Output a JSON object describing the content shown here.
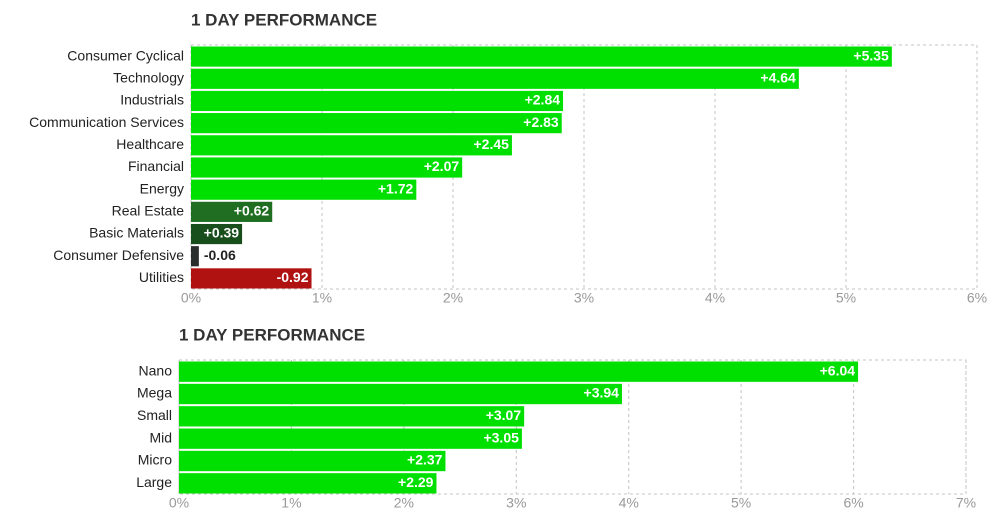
{
  "chart_data": [
    {
      "type": "barh",
      "title": "1 DAY PERFORMANCE",
      "categories": [
        "Consumer Cyclical",
        "Technology",
        "Industrials",
        "Communication Services",
        "Healthcare",
        "Financial",
        "Energy",
        "Real Estate",
        "Basic Materials",
        "Consumer Defensive",
        "Utilities"
      ],
      "values": [
        5.35,
        4.64,
        2.84,
        2.83,
        2.45,
        2.07,
        1.72,
        0.62,
        0.39,
        -0.06,
        -0.92
      ],
      "value_labels": [
        "+5.35",
        "+4.64",
        "+2.84",
        "+2.83",
        "+2.45",
        "+2.07",
        "+1.72",
        "+0.62",
        "+0.39",
        "-0.06",
        "-0.92"
      ],
      "colors": [
        "#00e000",
        "#00e000",
        "#00e000",
        "#00e000",
        "#00e000",
        "#00e000",
        "#00e000",
        "#1f6e22",
        "#184d1c",
        "#2a2e2c",
        "#b01212"
      ],
      "xlim": [
        0,
        6
      ],
      "xticks": [
        {
          "value": 0,
          "label": "0%"
        },
        {
          "value": 1,
          "label": "1%"
        },
        {
          "value": 2,
          "label": "2%"
        },
        {
          "value": 3,
          "label": "3%"
        },
        {
          "value": 4,
          "label": "4%"
        },
        {
          "value": 5,
          "label": "5%"
        },
        {
          "value": 6,
          "label": "6%"
        }
      ],
      "grid": true
    },
    {
      "type": "barh",
      "title": "1 DAY PERFORMANCE",
      "categories": [
        "Nano",
        "Mega",
        "Small",
        "Mid",
        "Micro",
        "Large"
      ],
      "values": [
        6.04,
        3.94,
        3.07,
        3.05,
        2.37,
        2.29
      ],
      "value_labels": [
        "+6.04",
        "+3.94",
        "+3.07",
        "+3.05",
        "+2.37",
        "+2.29"
      ],
      "colors": [
        "#00e000",
        "#00e000",
        "#00e000",
        "#00e000",
        "#00e000",
        "#00e000"
      ],
      "xlim": [
        0,
        7
      ],
      "xticks": [
        {
          "value": 0,
          "label": "0%"
        },
        {
          "value": 1,
          "label": "1%"
        },
        {
          "value": 2,
          "label": "2%"
        },
        {
          "value": 3,
          "label": "3%"
        },
        {
          "value": 4,
          "label": "4%"
        },
        {
          "value": 5,
          "label": "5%"
        },
        {
          "value": 6,
          "label": "6%"
        },
        {
          "value": 7,
          "label": "7%"
        }
      ],
      "grid": true
    }
  ]
}
